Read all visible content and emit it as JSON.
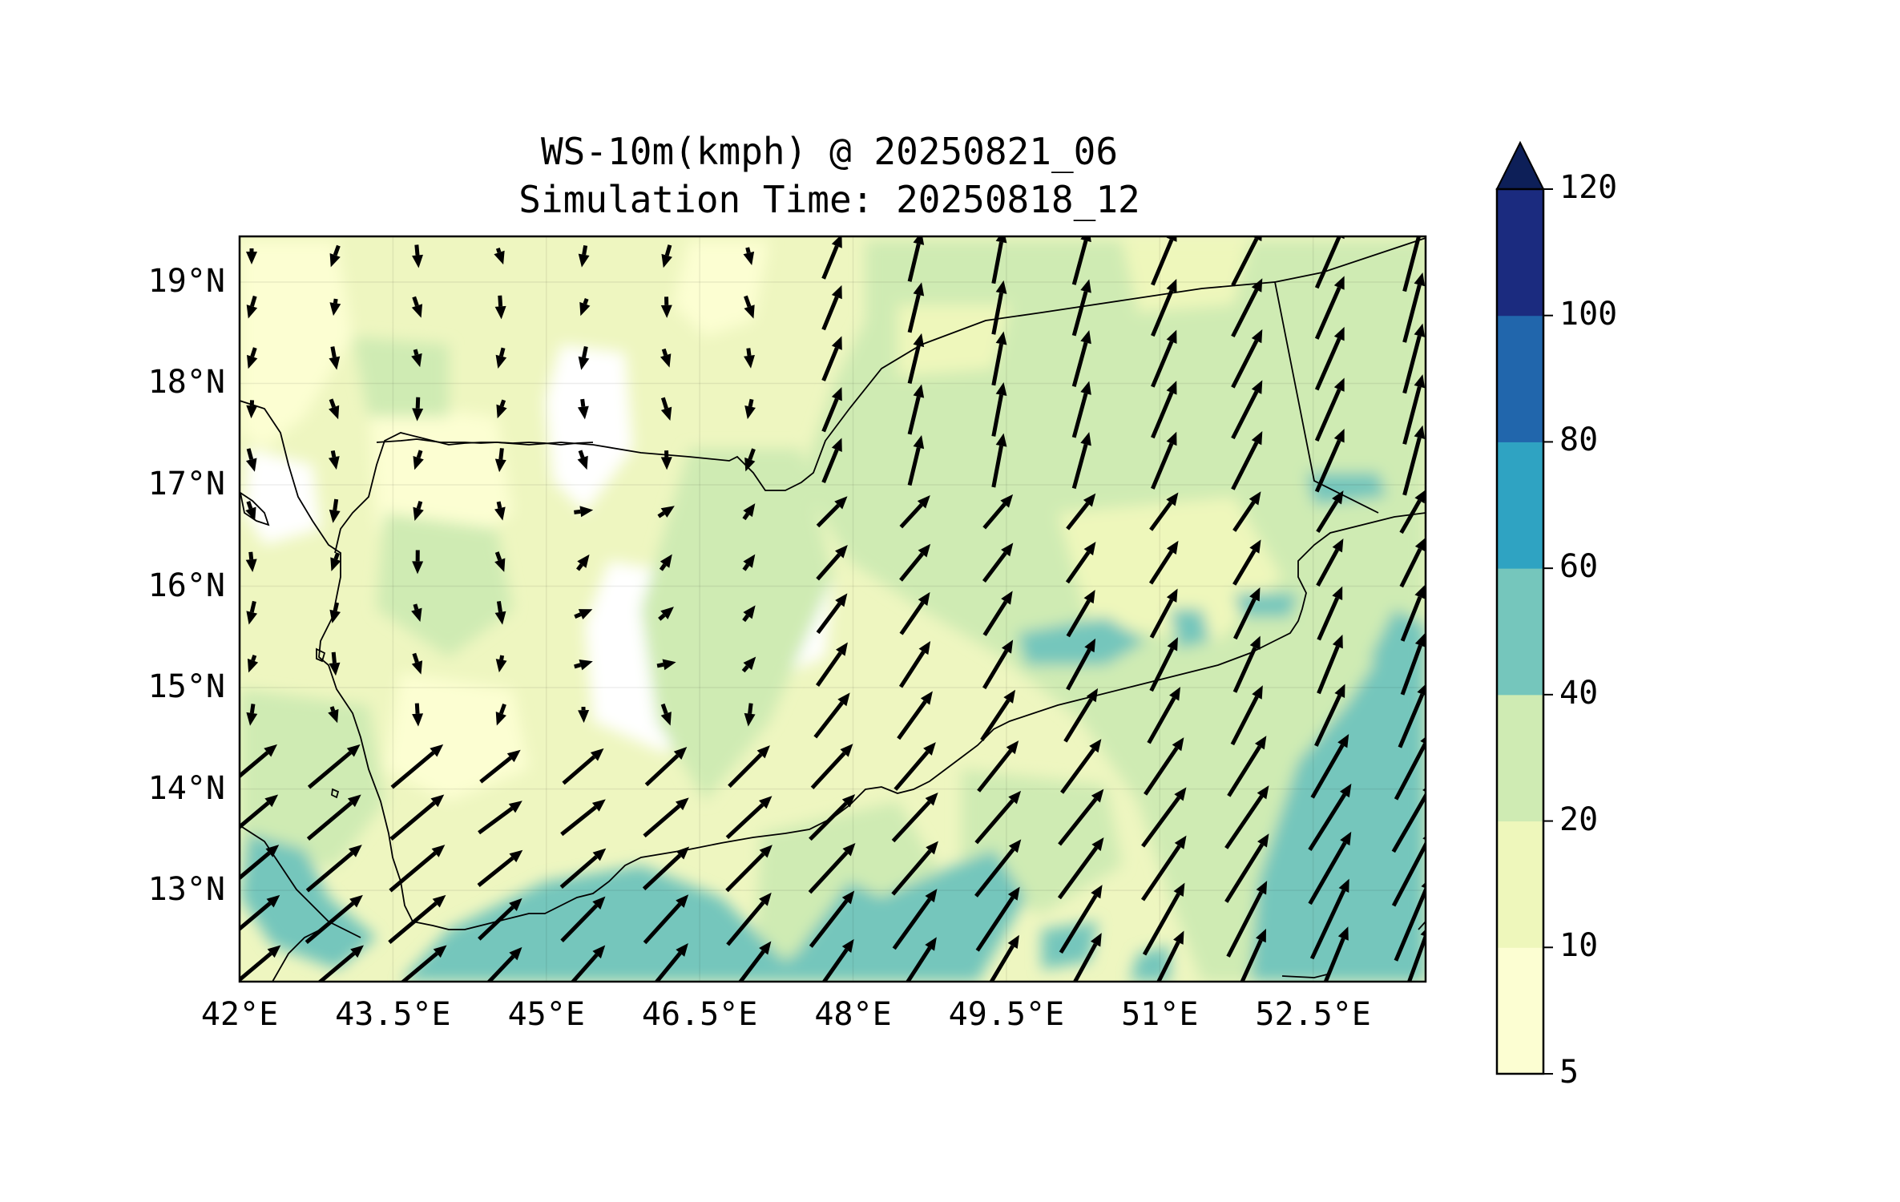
{
  "title_line1": "WS-10m(kmph) @ 20250821_06",
  "title_line2": "Simulation Time: 20250818_12",
  "map": {
    "lon_range": [
      42.0,
      53.6
    ],
    "lat_range": [
      12.1,
      19.45
    ],
    "lon_labels": [
      "42°E",
      "43.5°E",
      "45°E",
      "46.5°E",
      "48°E",
      "49.5°E",
      "51°E",
      "52.5°E"
    ],
    "lon_values": [
      42.0,
      43.5,
      45.0,
      46.5,
      48.0,
      49.5,
      51.0,
      52.5
    ],
    "lat_labels": [
      "19°N",
      "18°N",
      "17°N",
      "16°N",
      "15°N",
      "14°N",
      "13°N"
    ],
    "lat_values": [
      19,
      18,
      17,
      16,
      15,
      14,
      13
    ],
    "background_color": "#eef6c0",
    "coastline_color": "#000000",
    "vector_color": "#000000"
  },
  "colorbar": {
    "levels": [
      5,
      10,
      20,
      40,
      60,
      80,
      100,
      120
    ],
    "labels": [
      "5",
      "10",
      "20",
      "40",
      "60",
      "80",
      "100",
      "120"
    ],
    "colors": [
      "#fcfed2",
      "#eef7bb",
      "#cfebb3",
      "#75c6bc",
      "#2fa3c2",
      "#2166ac",
      "#1b2b7f"
    ],
    "extend_color": "#0d1f58",
    "extend": "max"
  }
}
